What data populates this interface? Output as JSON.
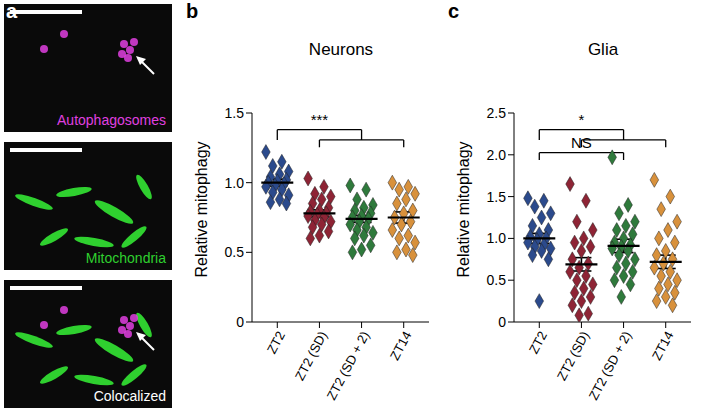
{
  "panel_a": {
    "panel": "a",
    "images": [
      "Autophagosomes",
      "Mitochondria",
      "Colocalized"
    ]
  },
  "chart_data": [
    {
      "type": "scatter",
      "panel": "b",
      "title": "Neurons",
      "ylabel": "Relative mitophagy",
      "categories": [
        "ZT2",
        "ZT2 (SD)",
        "ZT2 (SD + 2)",
        "ZT14"
      ],
      "colors": [
        "#2b4a8c",
        "#8e2435",
        "#2f7a3c",
        "#d8913c"
      ],
      "marker": "diamond",
      "points": [
        [
          1.22,
          1.15,
          1.12,
          1.08,
          1.06,
          1.04,
          1.02,
          1.01,
          1.0,
          0.99,
          0.98,
          0.97,
          0.95,
          0.93,
          0.91,
          0.88,
          0.86,
          0.85
        ],
        [
          1.03,
          0.97,
          0.92,
          0.9,
          0.88,
          0.85,
          0.82,
          0.8,
          0.79,
          0.78,
          0.77,
          0.76,
          0.75,
          0.73,
          0.72,
          0.7,
          0.68,
          0.65,
          0.62,
          0.6
        ],
        [
          0.98,
          0.95,
          0.88,
          0.84,
          0.82,
          0.8,
          0.78,
          0.76,
          0.75,
          0.74,
          0.72,
          0.7,
          0.68,
          0.66,
          0.64,
          0.62,
          0.6,
          0.55,
          0.52,
          0.5
        ],
        [
          1.0,
          0.97,
          0.95,
          0.92,
          0.88,
          0.85,
          0.8,
          0.78,
          0.75,
          0.72,
          0.7,
          0.66,
          0.62,
          0.6,
          0.57,
          0.52,
          0.5,
          0.48
        ]
      ],
      "mean": [
        1.0,
        0.78,
        0.74,
        0.75
      ],
      "sem": [
        0.025,
        0.025,
        0.025,
        0.04
      ],
      "ylim": [
        0,
        1.5
      ],
      "yticks": [
        0,
        0.5,
        {
          "value": 1,
          "label": "1.0"
        },
        1.5
      ],
      "grid": false,
      "annotations": [
        {
          "text": "***",
          "from": "ZT2",
          "to": [
            "ZT2 (SD)",
            "ZT2 (SD + 2)",
            "ZT14"
          ]
        }
      ]
    },
    {
      "type": "scatter",
      "panel": "c",
      "title": "Glia",
      "ylabel": "Relative mitophagy",
      "categories": [
        "ZT2",
        "ZT2 (SD)",
        "ZT2 (SD + 2)",
        "ZT14"
      ],
      "colors": [
        "#2b4a8c",
        "#8e2435",
        "#2f7a3c",
        "#d8913c"
      ],
      "marker": "diamond",
      "points": [
        [
          1.48,
          1.45,
          1.38,
          1.3,
          1.25,
          1.15,
          1.1,
          1.05,
          1.02,
          1.0,
          0.98,
          0.95,
          0.92,
          0.9,
          0.88,
          0.85,
          0.8,
          0.75,
          0.25
        ],
        [
          1.65,
          1.45,
          1.2,
          1.1,
          1.0,
          0.95,
          0.9,
          0.85,
          0.75,
          0.7,
          0.65,
          0.6,
          0.55,
          0.5,
          0.45,
          0.4,
          0.35,
          0.3,
          0.25,
          0.2,
          0.1,
          0.08
        ],
        [
          1.97,
          1.4,
          1.3,
          1.2,
          1.15,
          1.1,
          1.05,
          1.0,
          0.95,
          0.92,
          0.9,
          0.88,
          0.85,
          0.8,
          0.75,
          0.7,
          0.65,
          0.6,
          0.55,
          0.5,
          0.45,
          0.3
        ],
        [
          1.7,
          1.5,
          1.35,
          1.2,
          1.1,
          1.0,
          0.95,
          0.85,
          0.8,
          0.75,
          0.7,
          0.65,
          0.6,
          0.55,
          0.5,
          0.45,
          0.4,
          0.35,
          0.3,
          0.25,
          0.2
        ]
      ],
      "mean": [
        1.0,
        0.69,
        0.91,
        0.72
      ],
      "sem": [
        0.06,
        0.08,
        0.08,
        0.08
      ],
      "ylim": [
        0,
        2.5
      ],
      "yticks": [
        0,
        0.5,
        {
          "value": 1,
          "label": "1.0"
        },
        1.5,
        {
          "value": 2,
          "label": "2.0"
        },
        2.5
      ],
      "grid": false,
      "annotations": [
        {
          "text": "*",
          "from": "ZT2",
          "to": [
            "ZT2 (SD)",
            "ZT2 (SD + 2)",
            "ZT14"
          ]
        },
        {
          "text": "NS",
          "from": "ZT2",
          "to": [
            "ZT2 (SD + 2)"
          ]
        }
      ]
    }
  ]
}
